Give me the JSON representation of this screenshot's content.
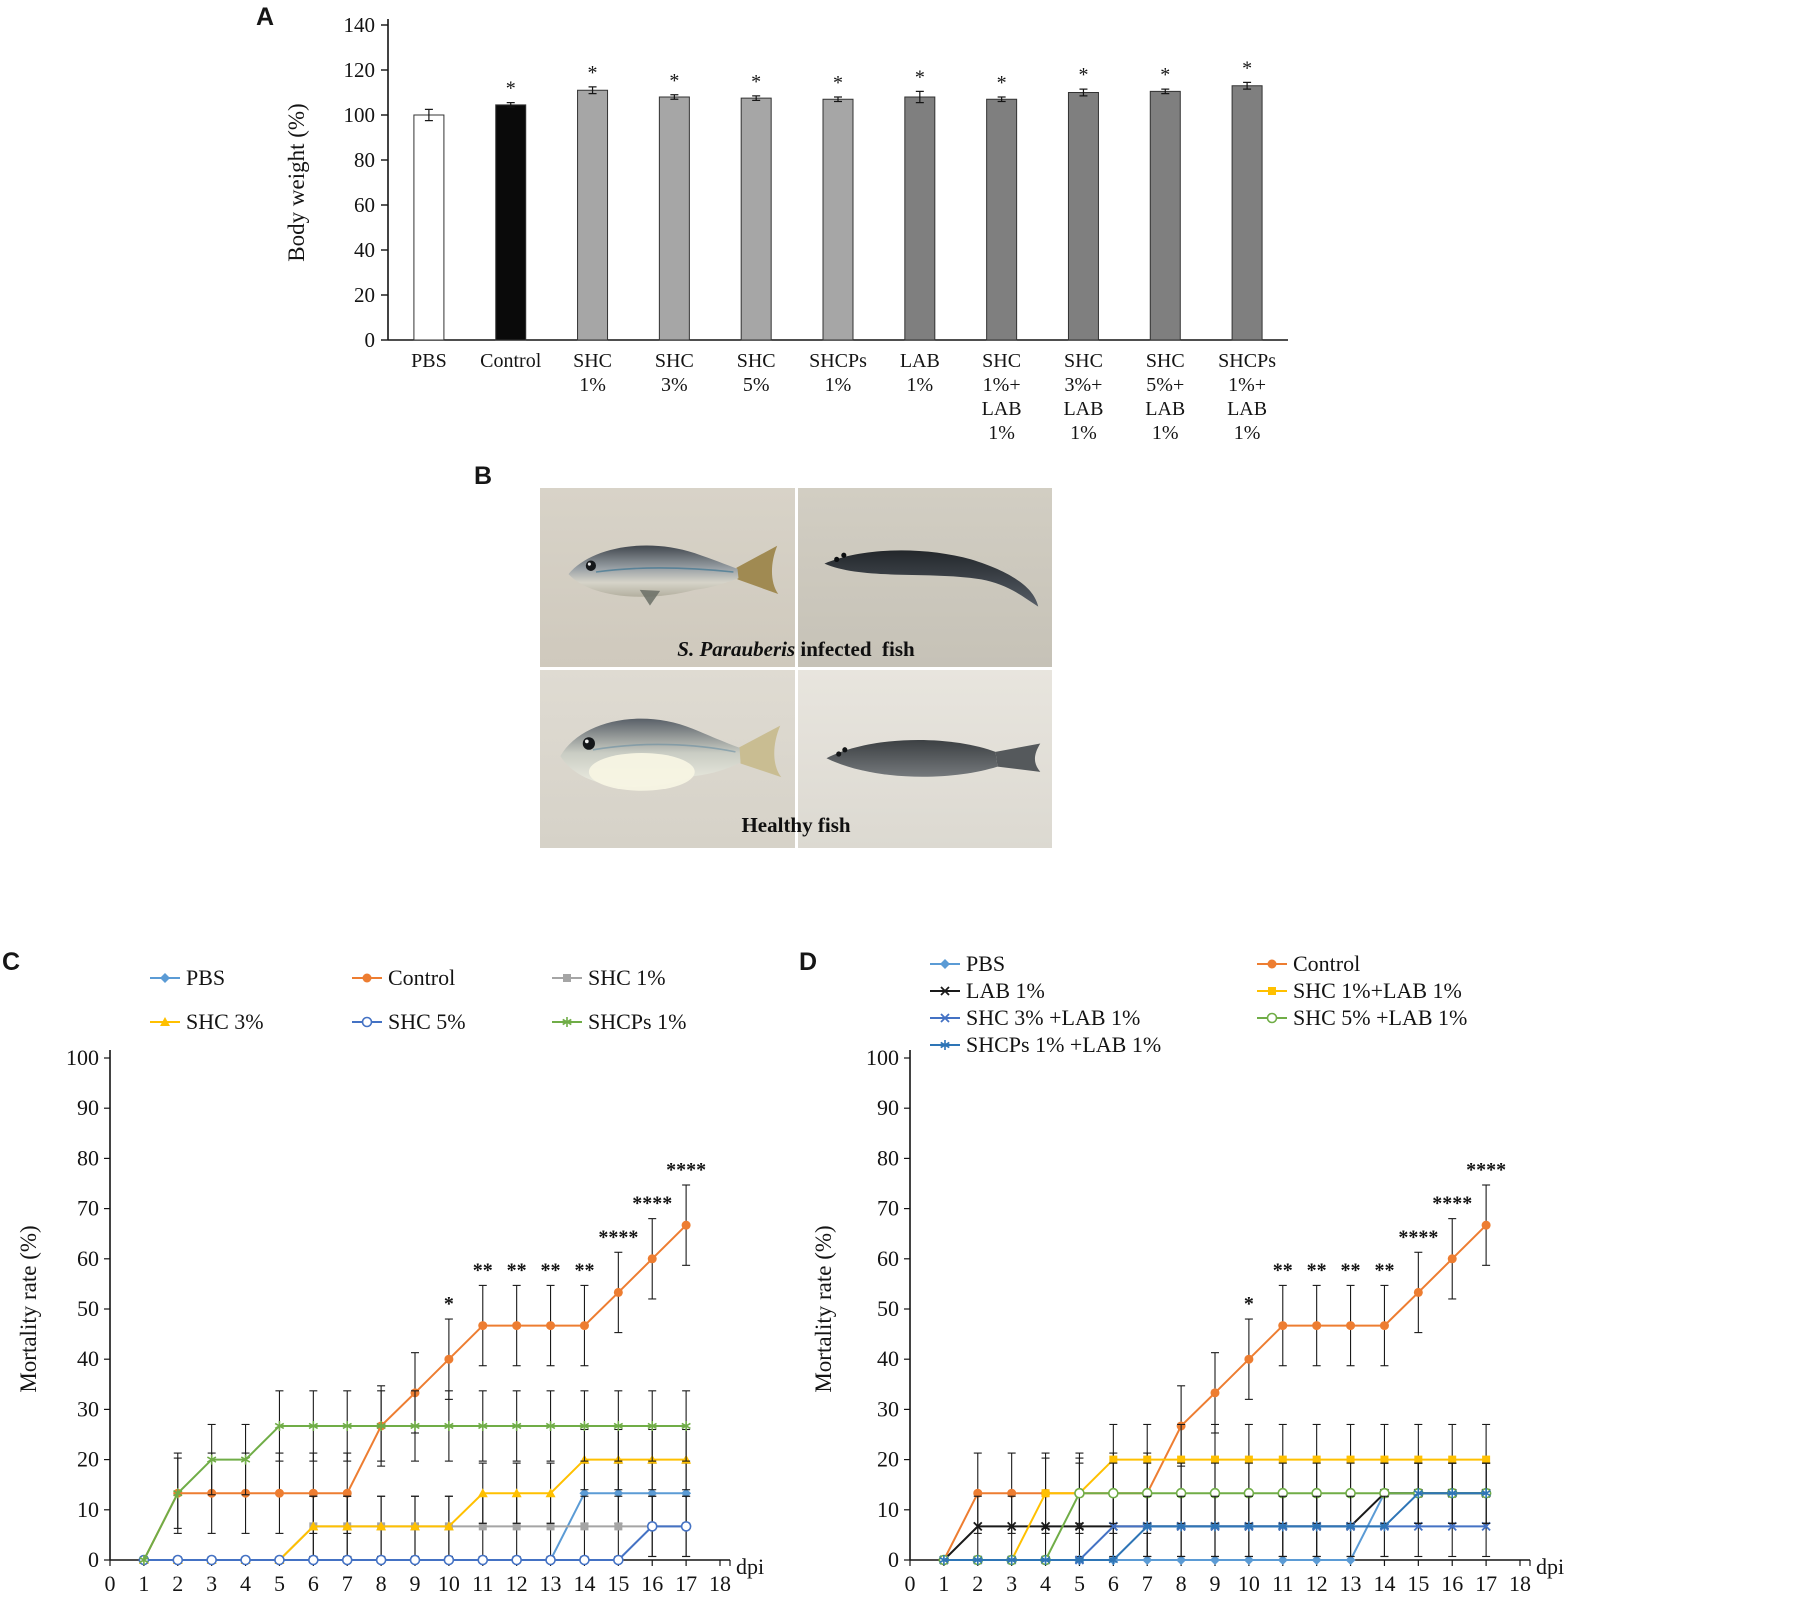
{
  "figure": {
    "panel_labels": {
      "a": "A",
      "b": "B",
      "c": "C",
      "d": "D"
    }
  },
  "panel_b": {
    "caption_infected_italic": "S. Parauberis",
    "caption_infected_rest": " infected  fish",
    "caption_healthy": "Healthy fish",
    "photo_bg_color": "#d3cec3"
  },
  "chart_data": [
    {
      "id": "body_weight_bar",
      "type": "bar",
      "title": "",
      "ylabel": "Body weight  (%)",
      "ylim": [
        0,
        140
      ],
      "ytick_step": 20,
      "categories": [
        "PBS",
        "Control",
        "SHC 1%",
        "SHC 3%",
        "SHC 5%",
        "SHCPs 1%",
        "LAB 1%",
        "SHC 1%+LAB 1%",
        "SHC 3%+LAB 1%",
        "SHC 5%+LAB 1%",
        "SHCPs 1%+LAB 1%"
      ],
      "category_lines": [
        [
          "PBS"
        ],
        [
          "Control"
        ],
        [
          "SHC",
          "1%"
        ],
        [
          "SHC",
          "3%"
        ],
        [
          "SHC",
          "5%"
        ],
        [
          "SHCPs",
          "1%"
        ],
        [
          "LAB",
          "1%"
        ],
        [
          "SHC",
          "1%+",
          "LAB",
          "1%"
        ],
        [
          "SHC",
          "3%+",
          "LAB",
          "1%"
        ],
        [
          "SHC",
          "5%+",
          "LAB",
          "1%"
        ],
        [
          "SHCPs",
          "1%+",
          "LAB",
          "1%"
        ]
      ],
      "values": [
        100,
        104.5,
        111,
        108,
        107.5,
        107,
        108,
        107,
        110,
        110.5,
        113
      ],
      "errors": [
        2.5,
        1,
        1.5,
        1,
        1,
        1,
        2.5,
        1,
        1.5,
        1,
        1.5
      ],
      "sig": [
        "",
        "*",
        "*",
        "*",
        "*",
        "*",
        "*",
        "*",
        "*",
        "*",
        "*"
      ],
      "bar_colors": [
        "#ffffff",
        "#0a0a0a",
        "#a6a6a6",
        "#a6a6a6",
        "#a6a6a6",
        "#a6a6a6",
        "#7f7f7f",
        "#7f7f7f",
        "#7f7f7f",
        "#7f7f7f",
        "#7f7f7f"
      ],
      "bar_border": "#333333"
    },
    {
      "id": "mortality_single",
      "type": "line",
      "ylabel": "Mortality rate (%)",
      "xlabel": "dpi",
      "xlim": [
        0,
        18
      ],
      "ylim": [
        0,
        100
      ],
      "ytick_step": 10,
      "x_start": 1,
      "legend_position": "top",
      "grid": false,
      "series": [
        {
          "name": "PBS",
          "color": "#5b9bd5",
          "marker": "diamond",
          "error": 6,
          "values": [
            0,
            0,
            0,
            0,
            0,
            0,
            0,
            0,
            0,
            0,
            0,
            0,
            0,
            13.3,
            13.3,
            13.3,
            13.3
          ]
        },
        {
          "name": "Control",
          "color": "#ed7d31",
          "marker": "circle",
          "error": 8,
          "values": [
            0,
            13.3,
            13.3,
            13.3,
            13.3,
            13.3,
            13.3,
            26.7,
            33.3,
            40,
            46.7,
            46.7,
            46.7,
            46.7,
            53.3,
            60,
            66.7
          ]
        },
        {
          "name": "SHC 1%",
          "color": "#a5a5a5",
          "marker": "square",
          "error": 6,
          "values": [
            0,
            0,
            0,
            0,
            0,
            6.7,
            6.7,
            6.7,
            6.7,
            6.7,
            6.7,
            6.7,
            6.7,
            6.7,
            6.7,
            6.7,
            6.7
          ]
        },
        {
          "name": "SHC 3%",
          "color": "#ffc000",
          "marker": "triangle",
          "error": 6,
          "values": [
            0,
            0,
            0,
            0,
            0,
            6.7,
            6.7,
            6.7,
            6.7,
            6.7,
            13.3,
            13.3,
            13.3,
            20,
            20,
            20,
            20
          ]
        },
        {
          "name": "SHC 5%",
          "color": "#4472c4",
          "marker": "circle-open",
          "error": 6,
          "values": [
            0,
            0,
            0,
            0,
            0,
            0,
            0,
            0,
            0,
            0,
            0,
            0,
            0,
            0,
            0,
            6.7,
            6.7
          ]
        },
        {
          "name": "SHCPs 1%",
          "color": "#70ad47",
          "marker": "asterisk",
          "error": 7,
          "values": [
            0,
            13.3,
            20,
            20,
            26.7,
            26.7,
            26.7,
            26.7,
            26.7,
            26.7,
            26.7,
            26.7,
            26.7,
            26.7,
            26.7,
            26.7,
            26.7
          ]
        }
      ],
      "sig_series": "Control",
      "sig": [
        {
          "x": 10,
          "text": "*"
        },
        {
          "x": 11,
          "text": "**"
        },
        {
          "x": 12,
          "text": "**"
        },
        {
          "x": 13,
          "text": "**"
        },
        {
          "x": 14,
          "text": "**"
        },
        {
          "x": 15,
          "text": "****"
        },
        {
          "x": 16,
          "text": "****"
        },
        {
          "x": 17,
          "text": "****"
        }
      ]
    },
    {
      "id": "mortality_combo",
      "type": "line",
      "ylabel": "Mortality rate (%)",
      "xlabel": "dpi",
      "xlim": [
        0,
        18
      ],
      "ylim": [
        0,
        100
      ],
      "ytick_step": 10,
      "x_start": 1,
      "legend_position": "top",
      "grid": false,
      "series": [
        {
          "name": "PBS",
          "color": "#5b9bd5",
          "marker": "diamond",
          "error": 6,
          "values": [
            0,
            0,
            0,
            0,
            0,
            0,
            0,
            0,
            0,
            0,
            0,
            0,
            0,
            13.3,
            13.3,
            13.3,
            13.3
          ]
        },
        {
          "name": "Control",
          "color": "#ed7d31",
          "marker": "circle",
          "error": 8,
          "values": [
            0,
            13.3,
            13.3,
            13.3,
            13.3,
            13.3,
            13.3,
            26.7,
            33.3,
            40,
            46.7,
            46.7,
            46.7,
            46.7,
            53.3,
            60,
            66.7
          ]
        },
        {
          "name": "LAB 1%",
          "color": "#1a1a1a",
          "marker": "x",
          "error": 6,
          "values": [
            0,
            6.7,
            6.7,
            6.7,
            6.7,
            6.7,
            6.7,
            6.7,
            6.7,
            6.7,
            6.7,
            6.7,
            6.7,
            13.3,
            13.3,
            13.3,
            13.3
          ]
        },
        {
          "name": "SHC 1%+LAB 1%",
          "color": "#ffc000",
          "marker": "square",
          "error": 7,
          "values": [
            0,
            0,
            0,
            13.3,
            13.3,
            20,
            20,
            20,
            20,
            20,
            20,
            20,
            20,
            20,
            20,
            20,
            20
          ]
        },
        {
          "name": "SHC 3% +LAB 1%",
          "color": "#4472c4",
          "marker": "x",
          "error": 6,
          "values": [
            0,
            0,
            0,
            0,
            0,
            6.7,
            6.7,
            6.7,
            6.7,
            6.7,
            6.7,
            6.7,
            6.7,
            6.7,
            6.7,
            6.7,
            6.7
          ]
        },
        {
          "name": "SHC 5% +LAB 1%",
          "color": "#70ad47",
          "marker": "circle-open",
          "error": 6,
          "values": [
            0,
            0,
            0,
            0,
            13.3,
            13.3,
            13.3,
            13.3,
            13.3,
            13.3,
            13.3,
            13.3,
            13.3,
            13.3,
            13.3,
            13.3,
            13.3
          ]
        },
        {
          "name": "SHCPs 1% +LAB 1%",
          "color": "#2e75b6",
          "marker": "asterisk",
          "error": 6,
          "values": [
            0,
            0,
            0,
            0,
            0,
            0,
            6.7,
            6.7,
            6.7,
            6.7,
            6.7,
            6.7,
            6.7,
            6.7,
            13.3,
            13.3,
            13.3
          ]
        }
      ],
      "sig_series": "Control",
      "sig": [
        {
          "x": 10,
          "text": "*"
        },
        {
          "x": 11,
          "text": "**"
        },
        {
          "x": 12,
          "text": "**"
        },
        {
          "x": 13,
          "text": "**"
        },
        {
          "x": 14,
          "text": "**"
        },
        {
          "x": 15,
          "text": "****"
        },
        {
          "x": 16,
          "text": "****"
        },
        {
          "x": 17,
          "text": "****"
        }
      ]
    }
  ]
}
